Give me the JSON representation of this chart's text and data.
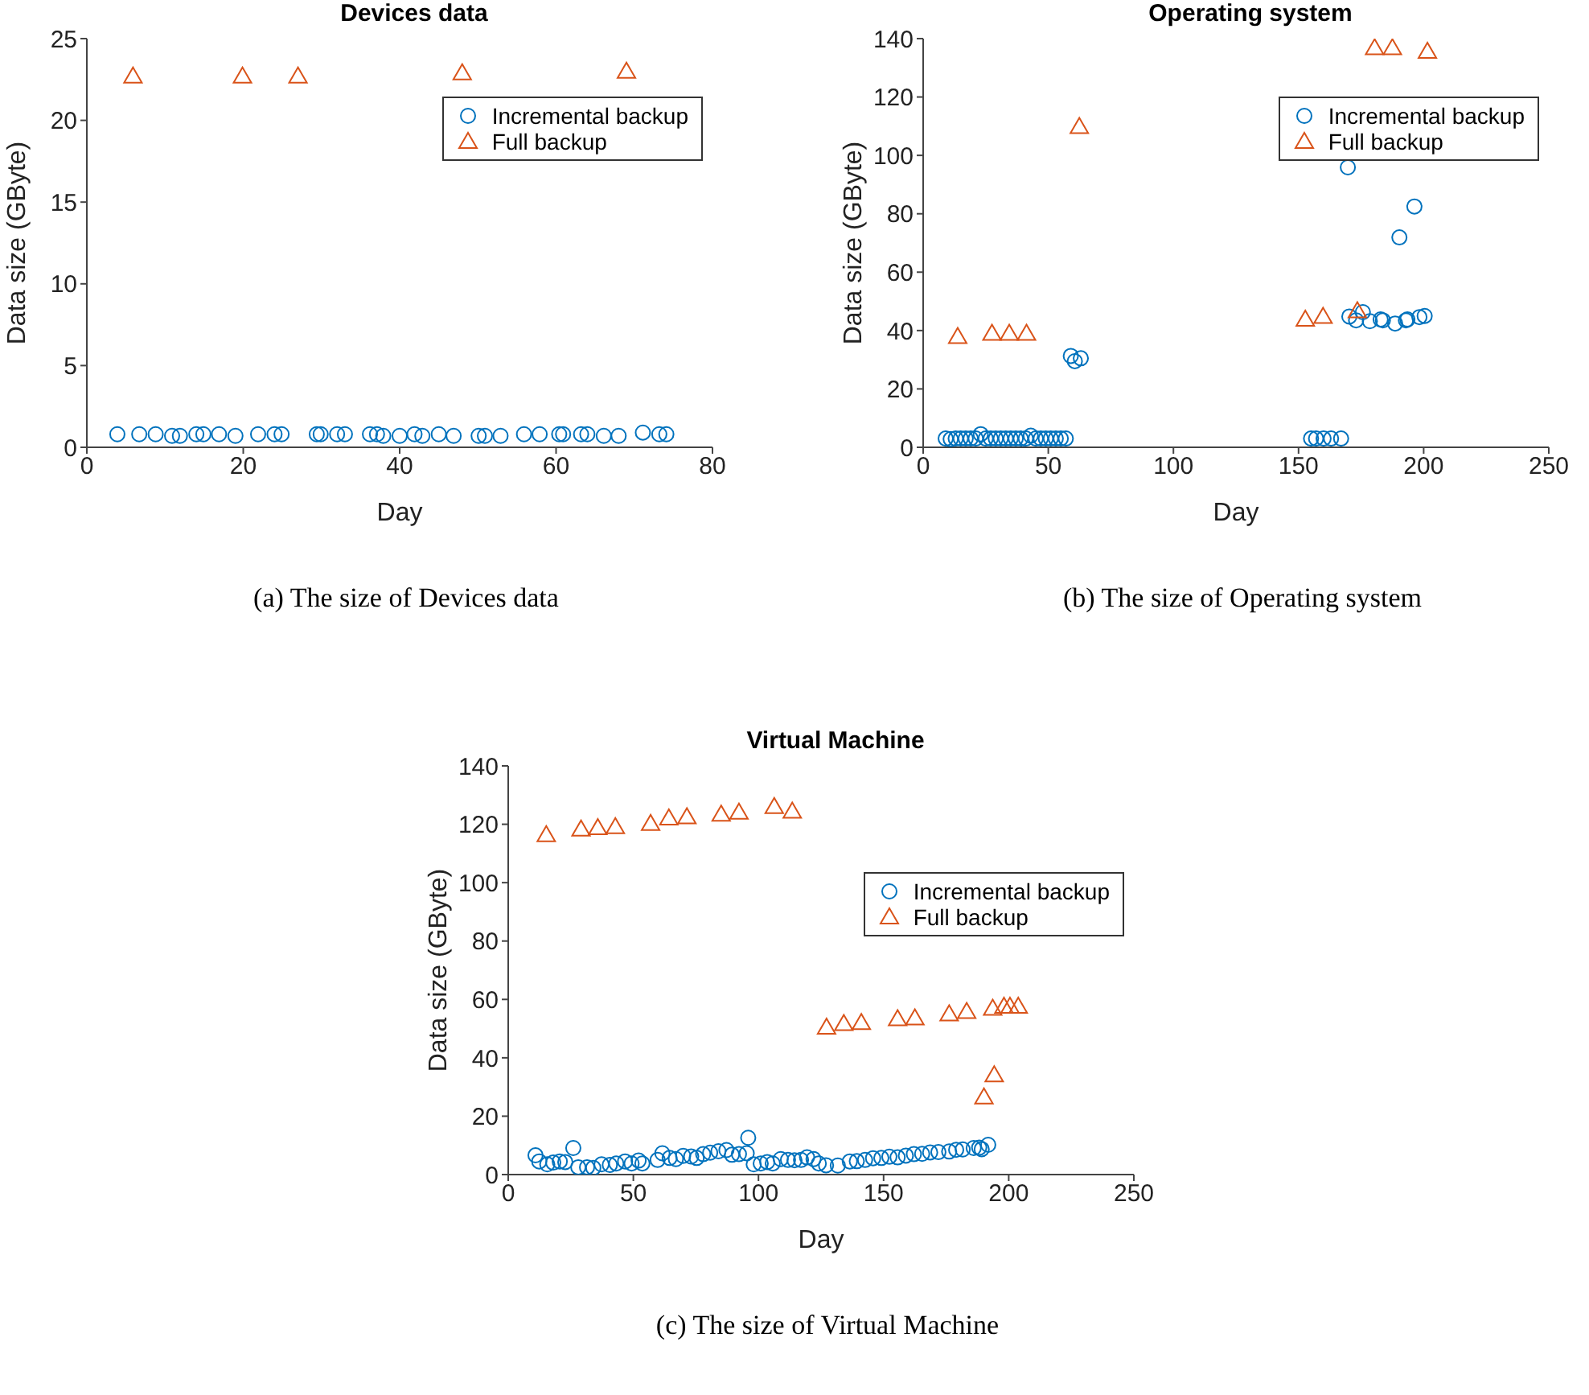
{
  "chart_data": [
    {
      "type": "scatter",
      "title": "Devices data",
      "xlabel": "Day",
      "ylabel": "Data size (GByte)",
      "xlim": [
        0,
        80
      ],
      "xticks": [
        0,
        20,
        40,
        60,
        80
      ],
      "ylim": [
        0,
        25
      ],
      "yticks": [
        0,
        5,
        10,
        15,
        20,
        25
      ],
      "legend": "top right",
      "annotations": [
        "(a) The size of Devices data"
      ],
      "series": [
        {
          "name": "Incremental backup",
          "color": "#0072bd",
          "marker": "circle",
          "x": [
            3.9,
            6.7,
            8.8,
            10.9,
            11.9,
            14.0,
            14.9,
            16.9,
            19.0,
            21.9,
            24.0,
            24.9,
            29.4,
            29.9,
            32.0,
            33.0,
            36.2,
            37.1,
            37.9,
            40.0,
            41.9,
            42.9,
            45.0,
            46.9,
            50.1,
            50.9,
            52.9,
            55.9,
            57.9,
            60.4,
            60.9,
            63.2,
            64.0,
            66.1,
            68.0,
            71.1,
            73.2,
            74.1
          ],
          "values": [
            0.8,
            0.8,
            0.8,
            0.7,
            0.7,
            0.8,
            0.8,
            0.8,
            0.7,
            0.8,
            0.8,
            0.8,
            0.8,
            0.8,
            0.8,
            0.8,
            0.8,
            0.8,
            0.7,
            0.7,
            0.8,
            0.7,
            0.8,
            0.7,
            0.7,
            0.7,
            0.7,
            0.8,
            0.8,
            0.8,
            0.8,
            0.8,
            0.8,
            0.7,
            0.7,
            0.9,
            0.8,
            0.8
          ]
        },
        {
          "name": "Full backup",
          "color": "#d95319",
          "marker": "triangle",
          "x": [
            5.9,
            19.9,
            27.0,
            48.0,
            69.0
          ],
          "values": [
            22.7,
            22.7,
            22.7,
            22.9,
            23.0
          ]
        }
      ]
    },
    {
      "type": "scatter",
      "title": "Operating system",
      "xlabel": "Day",
      "ylabel": "Data size (GByte)",
      "xlim": [
        0,
        250
      ],
      "xticks": [
        0,
        50,
        100,
        150,
        200,
        250
      ],
      "ylim": [
        0,
        140
      ],
      "yticks": [
        0,
        20,
        40,
        60,
        80,
        100,
        120,
        140
      ],
      "legend": "top right",
      "annotations": [
        "(b) The size of Operating system"
      ],
      "series": [
        {
          "name": "Incremental backup",
          "color": "#0072bd",
          "marker": "circle",
          "x": [
            9,
            11,
            13,
            15,
            17,
            19,
            21,
            23,
            25,
            27,
            29,
            31,
            33,
            35,
            37,
            39,
            41,
            43,
            45,
            47,
            49,
            51,
            53,
            55,
            57,
            59,
            60.6,
            63,
            155,
            157,
            160,
            163,
            167,
            169.7,
            190.3,
            196.3,
            170.3,
            173,
            175.7,
            178.5,
            182.8,
            183.7,
            188.6,
            192.9,
            193.5,
            198.3,
            200.4
          ],
          "values": [
            3,
            2.8,
            3,
            3,
            3,
            3,
            3,
            4.5,
            3,
            3,
            3,
            3,
            3,
            3,
            3,
            3,
            3,
            4,
            3,
            3,
            3,
            3,
            3,
            3,
            3,
            31.3,
            29.5,
            30.5,
            3,
            3,
            3,
            3,
            3,
            95.9,
            71.9,
            82.5,
            44.8,
            43.5,
            46.3,
            43.2,
            43.8,
            43.5,
            42.4,
            43.5,
            43.8,
            44.6,
            45
          ]
        },
        {
          "name": "Full backup",
          "color": "#d95319",
          "marker": "triangle",
          "x": [
            13.8,
            27.5,
            34.4,
            41.3,
            62.4,
            152.7,
            159.8,
            173.5,
            180.4,
            187.5,
            201.5
          ],
          "values": [
            37.9,
            39,
            39,
            39,
            109.8,
            43.8,
            44.8,
            46.7,
            136.8,
            136.8,
            135.6
          ]
        }
      ]
    },
    {
      "type": "scatter",
      "title": "Virtual Machine",
      "xlabel": "Day",
      "ylabel": "Data size (GByte)",
      "xlim": [
        0,
        250
      ],
      "xticks": [
        0,
        50,
        100,
        150,
        200,
        250
      ],
      "ylim": [
        0,
        140
      ],
      "yticks": [
        0,
        20,
        40,
        60,
        80,
        100,
        120,
        140
      ],
      "legend": "right",
      "annotations": [
        "(c) The size of Virtual Machine"
      ],
      "series": [
        {
          "name": "Incremental backup",
          "color": "#0072bd",
          "marker": "circle",
          "x": [
            10.9,
            12.4,
            15.6,
            18,
            20.6,
            22.8,
            26,
            28,
            31.5,
            34,
            37.3,
            40.6,
            43.2,
            46.7,
            49.3,
            52.1,
            53.6,
            59.7,
            61.6,
            64.5,
            67,
            69.9,
            73.1,
            75.3,
            77.9,
            80.7,
            84,
            87.2,
            89.4,
            92.2,
            95.3,
            95.9,
            98.1,
            100.9,
            103.5,
            105.7,
            108.9,
            111.8,
            114.4,
            117,
            119.4,
            122,
            124.1,
            127,
            131.7,
            136.5,
            139.3,
            142.6,
            145.8,
            149.1,
            152.3,
            155.6,
            158.9,
            162.1,
            165.4,
            168.6,
            171.9,
            176.2,
            179,
            181.6,
            186,
            188.2,
            189.2,
            191.8
          ],
          "values": [
            6.6,
            4.5,
            3.5,
            4.1,
            4.5,
            4.3,
            9.1,
            2.5,
            2.5,
            2.3,
            3.5,
            3.3,
            3.8,
            4.5,
            3.8,
            4.8,
            3.8,
            5,
            7.3,
            5.7,
            5.3,
            6.4,
            6.2,
            5.7,
            7,
            7.5,
            8,
            8.4,
            6.8,
            7,
            7.3,
            12.6,
            3.5,
            3.8,
            4.3,
            3.8,
            5.3,
            5,
            4.9,
            5,
            5.9,
            5.3,
            3.8,
            3.2,
            3.1,
            4.5,
            4.6,
            5,
            5.6,
            5.7,
            6.1,
            5.9,
            6.5,
            7,
            7.1,
            7.6,
            7.7,
            7.9,
            8.5,
            8.6,
            9.1,
            9.2,
            8.7,
            10.2
          ]
        },
        {
          "name": "Full backup",
          "color": "#d95319",
          "marker": "triangle",
          "x": [
            15.2,
            29.1,
            35.8,
            42.8,
            56.9,
            64.2,
            71.4,
            85.1,
            92.2,
            106.3,
            113.5,
            127.2,
            134.1,
            141.1,
            155.6,
            162.5,
            176.2,
            183.2,
            190.1,
            194.2,
            193.6,
            198.1,
            200.5,
            203.8
          ],
          "values": [
            116.4,
            118.3,
            118.8,
            119.1,
            120.2,
            122.1,
            122.5,
            123.4,
            124.1,
            126,
            124.4,
            50.4,
            51.7,
            52,
            53.3,
            53.6,
            55,
            55.8,
            26.5,
            34.1,
            56.9,
            57.6,
            57.6,
            57.6
          ]
        }
      ]
    }
  ]
}
